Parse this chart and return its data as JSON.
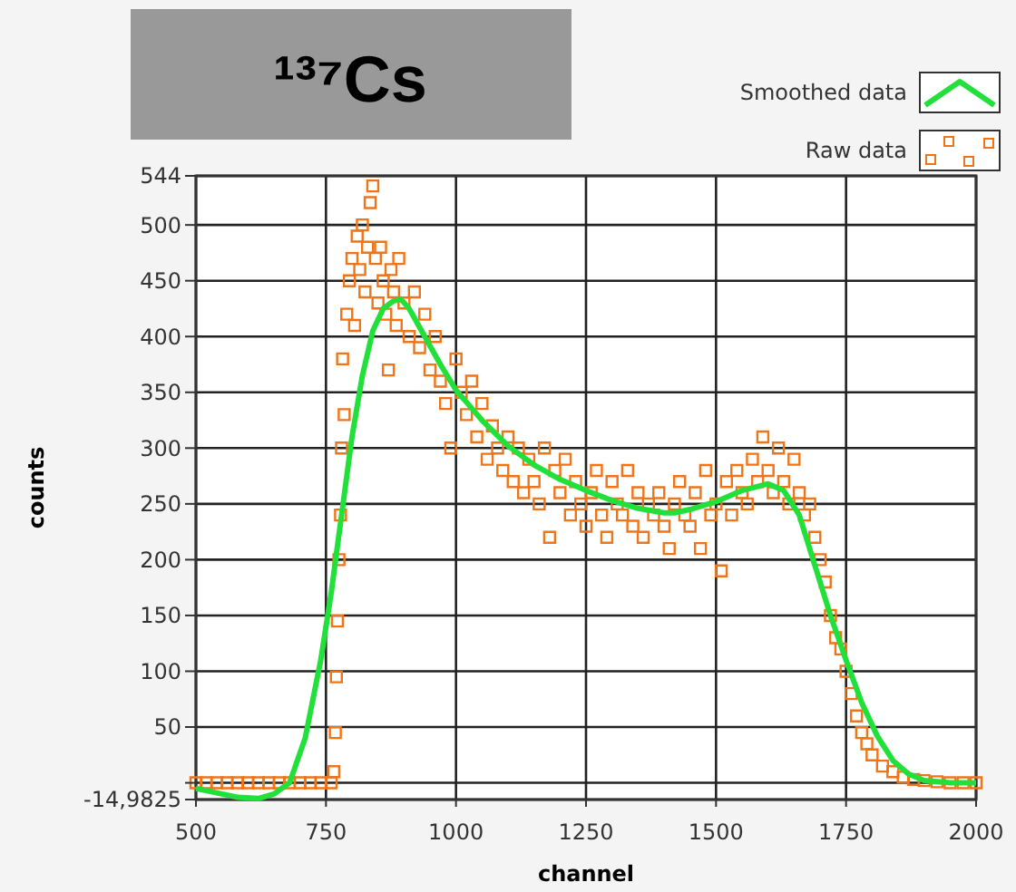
{
  "chart_data": {
    "type": "scatter",
    "title": "¹³⁷Cs",
    "xlabel": "channel",
    "ylabel": "counts",
    "xlim": [
      500,
      2000
    ],
    "xticks": [
      500,
      750,
      1000,
      1250,
      1500,
      1750,
      2000
    ],
    "ylim": [
      -14.9825,
      544
    ],
    "yticks": [
      {
        "value": -14.9825,
        "label": "-14,9825"
      },
      {
        "value": 0,
        "label": null
      },
      50,
      100,
      150,
      200,
      250,
      300,
      350,
      400,
      450,
      500,
      544
    ],
    "grid": true,
    "legend": "top right",
    "series": [
      {
        "name": "Smoothed data",
        "type": "line",
        "color": "#22e03a",
        "marker": "none",
        "line_style": "solid",
        "x": [
          500,
          540,
          580,
          620,
          650,
          680,
          710,
          740,
          760,
          780,
          800,
          820,
          840,
          860,
          880,
          895,
          910,
          940,
          970,
          1000,
          1050,
          1100,
          1150,
          1200,
          1250,
          1300,
          1350,
          1400,
          1420,
          1450,
          1500,
          1550,
          1600,
          1630,
          1660,
          1690,
          1720,
          1750,
          1780,
          1810,
          1840,
          1870,
          1900,
          1950,
          2000
        ],
        "values": [
          -5,
          -9,
          -13,
          -14,
          -10,
          0,
          40,
          110,
          170,
          240,
          310,
          365,
          405,
          425,
          432,
          433,
          425,
          400,
          375,
          352,
          325,
          302,
          285,
          272,
          262,
          253,
          246,
          242,
          242,
          245,
          252,
          262,
          268,
          262,
          240,
          195,
          150,
          110,
          72,
          42,
          20,
          8,
          2,
          0,
          0
        ]
      },
      {
        "name": "Raw data",
        "type": "scatter",
        "color": "#f07418",
        "marker": "square",
        "x": [
          500,
          520,
          540,
          560,
          580,
          600,
          620,
          640,
          660,
          680,
          700,
          720,
          740,
          760,
          765,
          768,
          770,
          772,
          775,
          778,
          780,
          782,
          785,
          790,
          795,
          800,
          805,
          810,
          815,
          820,
          825,
          830,
          835,
          840,
          845,
          850,
          855,
          860,
          865,
          870,
          875,
          880,
          885,
          890,
          900,
          910,
          920,
          930,
          940,
          950,
          960,
          970,
          980,
          990,
          1000,
          1010,
          1020,
          1030,
          1040,
          1050,
          1060,
          1070,
          1080,
          1090,
          1100,
          1110,
          1120,
          1130,
          1140,
          1150,
          1160,
          1170,
          1180,
          1190,
          1200,
          1210,
          1220,
          1230,
          1240,
          1250,
          1260,
          1270,
          1280,
          1290,
          1300,
          1310,
          1320,
          1330,
          1340,
          1350,
          1360,
          1370,
          1380,
          1390,
          1400,
          1410,
          1420,
          1430,
          1440,
          1450,
          1460,
          1470,
          1480,
          1490,
          1500,
          1510,
          1520,
          1530,
          1540,
          1550,
          1560,
          1570,
          1580,
          1590,
          1600,
          1610,
          1620,
          1630,
          1640,
          1650,
          1660,
          1670,
          1680,
          1690,
          1700,
          1710,
          1720,
          1730,
          1740,
          1750,
          1760,
          1770,
          1780,
          1790,
          1800,
          1820,
          1840,
          1860,
          1880,
          1900,
          1925,
          1950,
          1975,
          2000
        ],
        "values": [
          0,
          0,
          0,
          0,
          0,
          0,
          0,
          0,
          0,
          0,
          0,
          0,
          0,
          0,
          10,
          45,
          95,
          145,
          200,
          240,
          300,
          380,
          330,
          420,
          450,
          470,
          410,
          490,
          460,
          500,
          440,
          480,
          520,
          535,
          470,
          430,
          480,
          450,
          420,
          370,
          460,
          440,
          410,
          470,
          430,
          400,
          440,
          390,
          420,
          370,
          400,
          360,
          340,
          300,
          380,
          350,
          330,
          360,
          310,
          340,
          290,
          320,
          300,
          280,
          310,
          270,
          300,
          260,
          290,
          270,
          250,
          300,
          220,
          280,
          260,
          290,
          240,
          270,
          250,
          230,
          260,
          280,
          240,
          220,
          270,
          250,
          240,
          280,
          230,
          260,
          220,
          250,
          240,
          260,
          230,
          210,
          250,
          270,
          240,
          230,
          260,
          210,
          280,
          240,
          250,
          190,
          270,
          240,
          280,
          260,
          250,
          290,
          270,
          310,
          280,
          260,
          300,
          270,
          250,
          290,
          260,
          240,
          250,
          220,
          200,
          180,
          150,
          130,
          120,
          100,
          80,
          60,
          45,
          35,
          25,
          15,
          10,
          5,
          3,
          2,
          1,
          0,
          0,
          0
        ]
      }
    ]
  }
}
